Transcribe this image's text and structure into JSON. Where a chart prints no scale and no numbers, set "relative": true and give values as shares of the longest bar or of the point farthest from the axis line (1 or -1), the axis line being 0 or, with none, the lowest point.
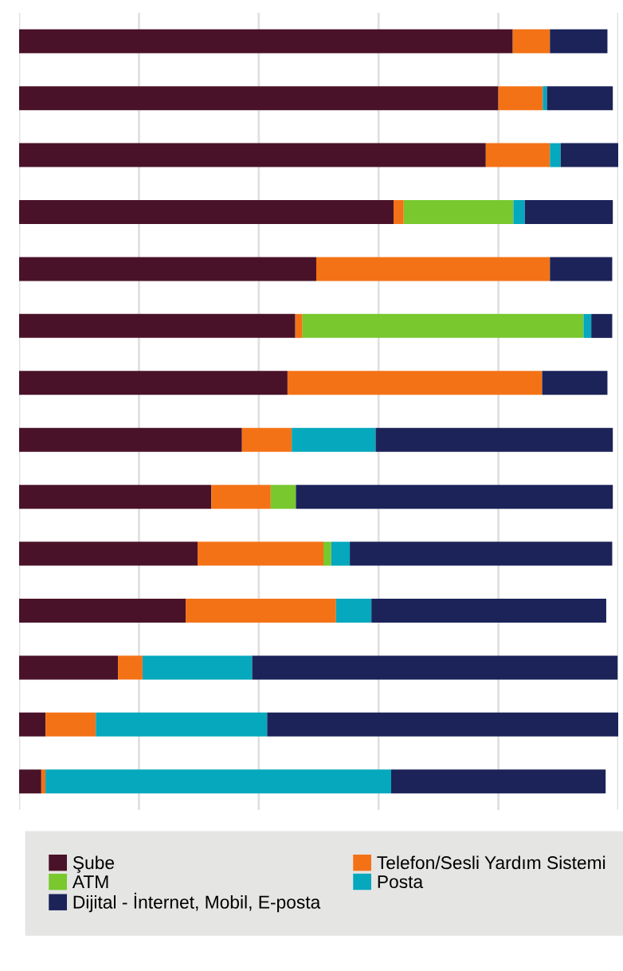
{
  "chart_data": {
    "type": "bar",
    "orientation": "horizontal",
    "stacked": true,
    "relative": true,
    "grid": "x",
    "legend": "bottom",
    "categories": [
      null,
      null,
      null,
      null,
      null,
      null,
      null,
      null,
      null,
      null,
      null,
      null,
      null,
      null
    ],
    "series": [
      {
        "name": "Şube",
        "color": "#4a1228",
        "values": [
          0.824,
          0.8,
          0.779,
          0.625,
          0.496,
          0.461,
          0.448,
          0.372,
          0.321,
          0.298,
          0.278,
          0.165,
          0.044,
          0.037
        ]
      },
      {
        "name": "Telefon/Sesli Yardım Sistemi",
        "color": "#f47216",
        "values": [
          0.062,
          0.074,
          0.107,
          0.017,
          0.39,
          0.012,
          0.425,
          0.083,
          0.099,
          0.21,
          0.251,
          0.041,
          0.084,
          0.007
        ]
      },
      {
        "name": "ATM",
        "color": "#78c82e",
        "values": [
          null,
          null,
          null,
          0.183,
          null,
          0.469,
          null,
          null,
          0.042,
          0.013,
          null,
          null,
          null,
          null
        ]
      },
      {
        "name": "Posta",
        "color": "#05a8bd",
        "values": [
          null,
          0.007,
          0.018,
          0.019,
          null,
          0.013,
          null,
          0.14,
          null,
          0.031,
          0.059,
          0.183,
          0.286,
          0.577
        ]
      },
      {
        "name": "Dijital - İnternet, Mobil, E-posta",
        "color": "#1b2359",
        "values": [
          0.096,
          0.11,
          0.096,
          0.147,
          0.104,
          0.035,
          0.109,
          0.396,
          0.529,
          0.438,
          0.392,
          0.61,
          0.586,
          0.358
        ]
      }
    ]
  }
}
